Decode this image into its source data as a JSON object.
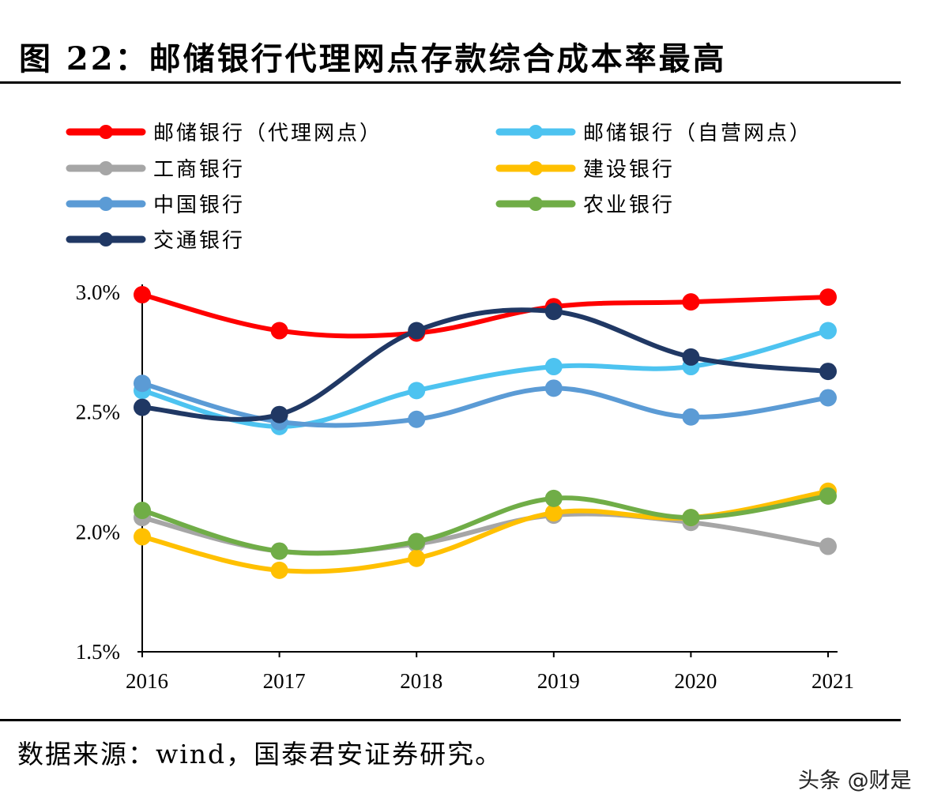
{
  "title": "图 22：邮储银行代理网点存款综合成本率最高",
  "source": "数据来源：wind，国泰君安证券研究。",
  "watermark": "头条 @财是",
  "chart_data": {
    "type": "line",
    "categories": [
      "2016",
      "2017",
      "2018",
      "2019",
      "2020",
      "2021"
    ],
    "ylim": [
      1.5,
      3.0
    ],
    "yticks": [
      "1.5%",
      "2.0%",
      "2.5%",
      "3.0%"
    ],
    "ytick_values": [
      1.5,
      2.0,
      2.5,
      3.0
    ],
    "grid": false,
    "legend_position": "top",
    "series": [
      {
        "name": "邮储银行（代理网点）",
        "color": "#ff0000",
        "values": [
          2.99,
          2.84,
          2.83,
          2.94,
          2.96,
          2.98
        ]
      },
      {
        "name": "邮储银行（自营网点）",
        "color": "#4dc3f0",
        "values": [
          2.59,
          2.44,
          2.59,
          2.69,
          2.69,
          2.84
        ]
      },
      {
        "name": "工商银行",
        "color": "#a6a6a6",
        "values": [
          2.06,
          1.92,
          1.95,
          2.07,
          2.04,
          1.94
        ]
      },
      {
        "name": "建设银行",
        "color": "#ffc000",
        "values": [
          1.98,
          1.84,
          1.89,
          2.08,
          2.06,
          2.17
        ]
      },
      {
        "name": "中国银行",
        "color": "#5b9bd5",
        "values": [
          2.62,
          2.46,
          2.47,
          2.6,
          2.48,
          2.56
        ]
      },
      {
        "name": "农业银行",
        "color": "#70ad47",
        "values": [
          2.09,
          1.92,
          1.96,
          2.14,
          2.06,
          2.15
        ]
      },
      {
        "name": "交通银行",
        "color": "#203864",
        "values": [
          2.52,
          2.49,
          2.84,
          2.92,
          2.73,
          2.67
        ]
      }
    ]
  }
}
